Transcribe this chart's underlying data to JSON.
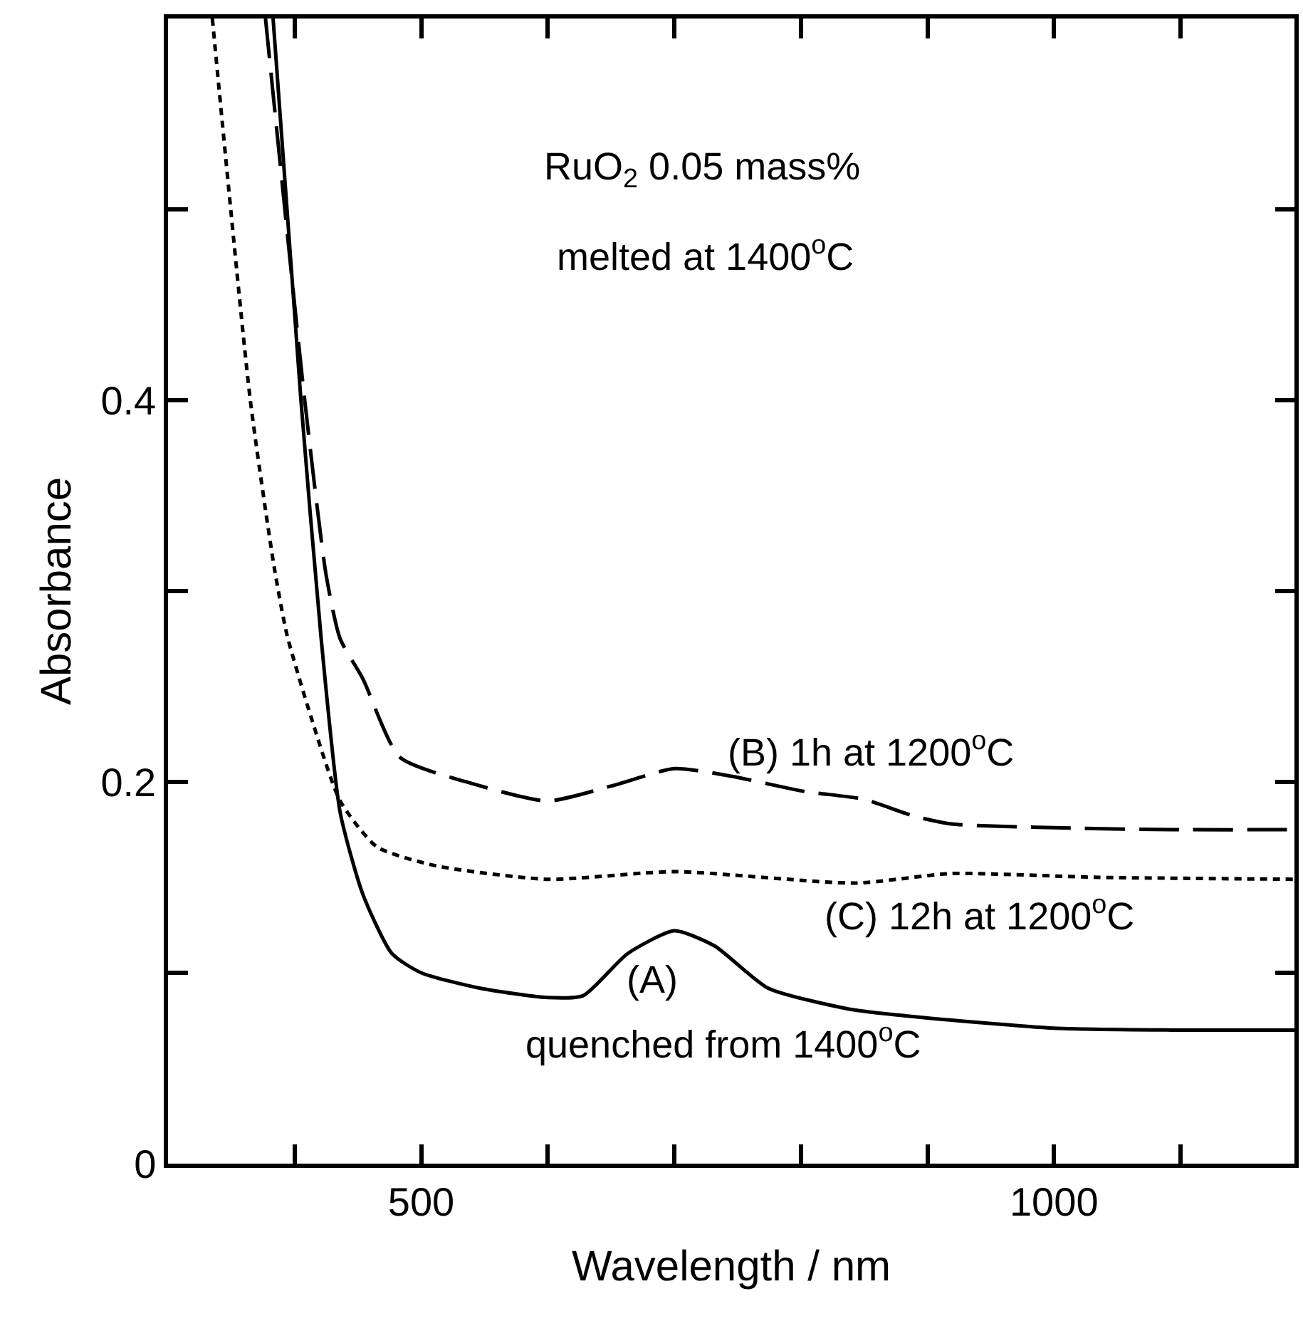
{
  "chart_data": {
    "type": "line",
    "xlabel": "Wavelength / nm",
    "ylabel": "Absorbance",
    "xlim": [
      300,
      1190
    ],
    "ylim": [
      0,
      0.6
    ],
    "xticks": [
      {
        "value": 400,
        "label": null
      },
      500,
      {
        "value": 600,
        "label": null
      },
      {
        "value": 700,
        "label": null
      },
      {
        "value": 800,
        "label": null
      },
      {
        "value": 900,
        "label": null
      },
      1000,
      {
        "value": 1100,
        "label": null
      }
    ],
    "yticks": [
      0,
      {
        "value": 0.1,
        "label": null
      },
      0.2,
      {
        "value": 0.3,
        "label": null
      },
      0.4,
      {
        "value": 0.5,
        "label": null
      }
    ],
    "marker": "none",
    "series": [
      {
        "color": "#000000",
        "line_style": "solid",
        "x": [
          383,
          405,
          421,
          436,
          454,
          477,
          500,
          546,
          600,
          628,
          663,
          700,
          732,
          774,
          838,
          890,
          1000,
          1093,
          1190
        ],
        "values": [
          0.6,
          0.4,
          0.275,
          0.184,
          0.141,
          0.11,
          0.1,
          0.092,
          0.087,
          0.088,
          0.11,
          0.122,
          0.114,
          0.092,
          0.081,
          0.077,
          0.071,
          0.07,
          0.07
        ]
      },
      {
        "color": "#000000",
        "line_style": "dashed",
        "x": [
          377,
          408,
          425,
          436,
          454,
          483,
          541,
          600,
          651,
          700,
          745,
          803,
          849,
          890,
          919,
          1000,
          1093,
          1190
        ],
        "values": [
          0.6,
          0.4,
          0.308,
          0.275,
          0.254,
          0.213,
          0.199,
          0.19,
          0.198,
          0.207,
          0.203,
          0.195,
          0.191,
          0.182,
          0.178,
          0.176,
          0.175,
          0.175
        ]
      },
      {
        "color": "#000000",
        "line_style": "dotted",
        "x": [
          335,
          365,
          384,
          394,
          413,
          436,
          465,
          512,
          600,
          700,
          843,
          919,
          1035,
          1190
        ],
        "values": [
          0.6,
          0.4,
          0.312,
          0.277,
          0.234,
          0.19,
          0.166,
          0.156,
          0.149,
          0.153,
          0.147,
          0.152,
          0.15,
          0.149
        ]
      }
    ],
    "annotations": [
      "RuO$_{2}$ 0.05 mass%",
      "melted at 1400$^{o}$C",
      "(B) 1h at 1200$^{o}$C",
      "(C) 12h at 1200$^{o}$C",
      "(A)",
      "quenched from 1400$^{o}$C"
    ]
  }
}
